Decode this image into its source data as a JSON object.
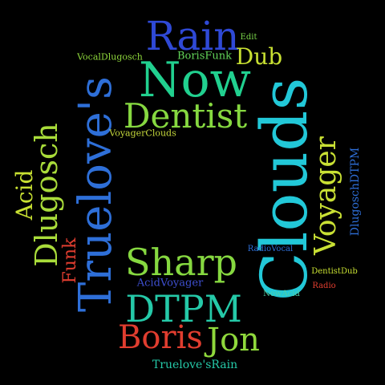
{
  "background_color": "#000000",
  "words": [
    {
      "key": "rain",
      "text": "Rain",
      "color": "#2f49d6"
    },
    {
      "key": "edit",
      "text": "Edit",
      "color": "#7ad64a"
    },
    {
      "key": "vocaldlugosch",
      "text": "VocalDlugosch",
      "color": "#8fd83c"
    },
    {
      "key": "borisfunk",
      "text": "BorisFunk",
      "color": "#63d65a"
    },
    {
      "key": "dub",
      "text": "Dub",
      "color": "#c8e032"
    },
    {
      "key": "now",
      "text": "Now",
      "color": "#21d08f"
    },
    {
      "key": "trueloves",
      "text": "Truelove's",
      "color": "#2e6fd8"
    },
    {
      "key": "clouds",
      "text": "Clouds",
      "color": "#22c8d8"
    },
    {
      "key": "dentist",
      "text": "Dentist",
      "color": "#86d840"
    },
    {
      "key": "voyagerclouds",
      "text": "VoyagerClouds",
      "color": "#c6d93c"
    },
    {
      "key": "voyager",
      "text": "Voyager",
      "color": "#c9e034"
    },
    {
      "key": "dlugoschdtpm",
      "text": "DlugoschDTPM",
      "color": "#2e6fd8"
    },
    {
      "key": "acid",
      "text": "Acid",
      "color": "#c8e032"
    },
    {
      "key": "dlugosch",
      "text": "Dlugosch",
      "color": "#a9dc3a"
    },
    {
      "key": "funk",
      "text": "Funk",
      "color": "#e03d2f"
    },
    {
      "key": "sharp",
      "text": "Sharp",
      "color": "#86d840"
    },
    {
      "key": "radiovocal",
      "text": "RadioVocal",
      "color": "#2e6fd8"
    },
    {
      "key": "acidvoyager",
      "text": "AcidVoyager",
      "color": "#3e4fd0"
    },
    {
      "key": "dentistdub",
      "text": "DentistDub",
      "color": "#c8e032"
    },
    {
      "key": "radio",
      "text": "Radio",
      "color": "#e03d2f"
    },
    {
      "key": "nowacid",
      "text": "NowAcid",
      "color": "#4fd0a6"
    },
    {
      "key": "dtpm",
      "text": "DTPM",
      "color": "#25c9a8"
    },
    {
      "key": "boris",
      "text": "Boris",
      "color": "#e03d2f"
    },
    {
      "key": "jon",
      "text": "Jon",
      "color": "#8fd83c"
    },
    {
      "key": "truelovesrain",
      "text": "Truelove'sRain",
      "color": "#25c9a8"
    }
  ]
}
